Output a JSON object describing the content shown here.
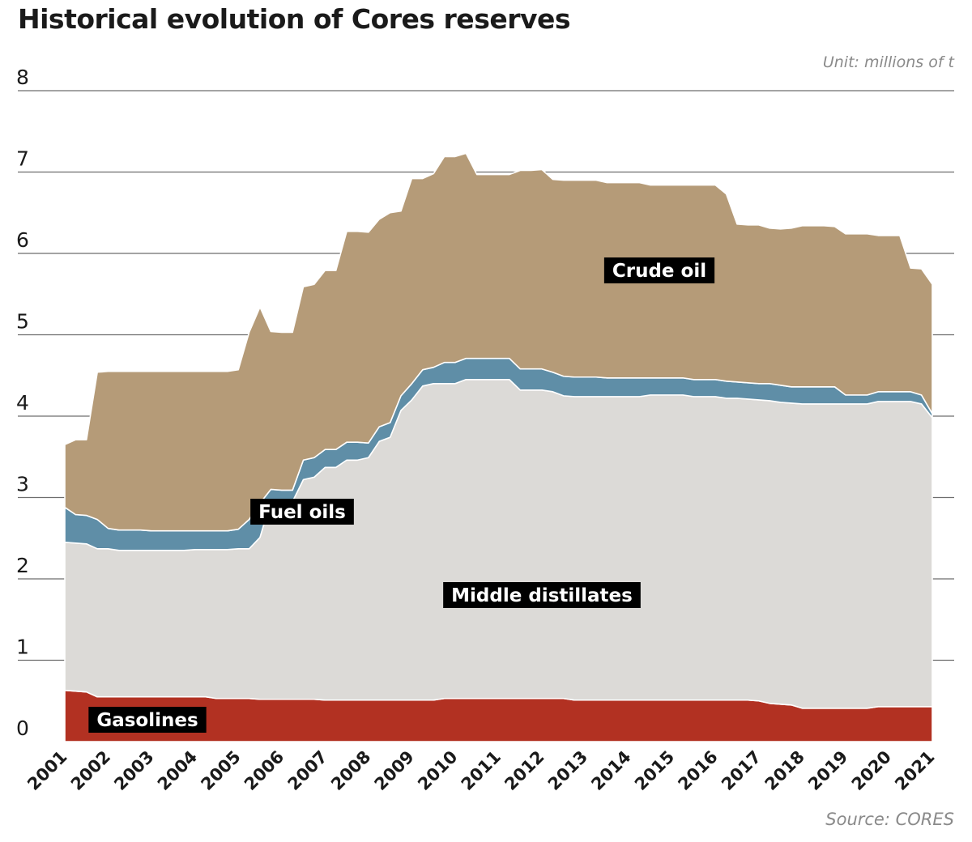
{
  "title": "Historical evolution of Cores reserves",
  "unit_note": "Unit: millions of t",
  "source_note": "Source: CORES",
  "chart_data": {
    "type": "area",
    "stacked": true,
    "title": "Historical evolution of Cores reserves",
    "unit": "millions of t",
    "ylim": [
      0,
      8
    ],
    "y_ticks": [
      0,
      1,
      2,
      3,
      4,
      5,
      6,
      7,
      8
    ],
    "x_ticks": [
      "2001",
      "2002",
      "2003",
      "2004",
      "2005",
      "2006",
      "2007",
      "2008",
      "2009",
      "2010",
      "2011",
      "2012",
      "2013",
      "2014",
      "2015",
      "2016",
      "2017",
      "2018",
      "2019",
      "2020",
      "2021"
    ],
    "xlim": [
      2001.0,
      2021.0
    ],
    "grid": "horizontal",
    "x": [
      2001.0,
      2001.25,
      2001.5,
      2001.75,
      2002.0,
      2002.25,
      2002.5,
      2002.75,
      2003.0,
      2003.25,
      2003.5,
      2003.75,
      2004.0,
      2004.25,
      2004.5,
      2004.75,
      2005.0,
      2005.25,
      2005.5,
      2005.75,
      2006.0,
      2006.25,
      2006.5,
      2006.75,
      2007.0,
      2007.25,
      2007.5,
      2007.75,
      2008.0,
      2008.25,
      2008.5,
      2008.75,
      2009.0,
      2009.25,
      2009.5,
      2009.75,
      2010.0,
      2010.25,
      2010.5,
      2010.75,
      2011.0,
      2011.25,
      2011.5,
      2011.75,
      2012.0,
      2012.25,
      2012.5,
      2012.75,
      2013.0,
      2013.25,
      2013.5,
      2013.75,
      2014.0,
      2014.25,
      2014.5,
      2014.75,
      2015.0,
      2015.25,
      2015.5,
      2015.75,
      2016.0,
      2016.25,
      2016.5,
      2016.75,
      2017.0,
      2017.25,
      2017.5,
      2017.75,
      2018.0,
      2018.25,
      2018.5,
      2018.75,
      2019.0,
      2019.25,
      2019.5,
      2019.75,
      2020.0,
      2020.25,
      2020.5,
      2020.75,
      2021.0
    ],
    "series": [
      {
        "name": "Gasolines",
        "color": "#b23122",
        "values": [
          0.63,
          0.62,
          0.61,
          0.55,
          0.55,
          0.55,
          0.55,
          0.55,
          0.55,
          0.55,
          0.55,
          0.55,
          0.55,
          0.55,
          0.53,
          0.53,
          0.53,
          0.53,
          0.52,
          0.52,
          0.52,
          0.52,
          0.52,
          0.52,
          0.51,
          0.51,
          0.51,
          0.51,
          0.51,
          0.51,
          0.51,
          0.51,
          0.51,
          0.51,
          0.51,
          0.53,
          0.53,
          0.53,
          0.53,
          0.53,
          0.53,
          0.53,
          0.53,
          0.53,
          0.53,
          0.53,
          0.53,
          0.51,
          0.51,
          0.51,
          0.51,
          0.51,
          0.51,
          0.51,
          0.51,
          0.51,
          0.51,
          0.51,
          0.51,
          0.51,
          0.51,
          0.51,
          0.51,
          0.51,
          0.5,
          0.47,
          0.46,
          0.45,
          0.41,
          0.41,
          0.41,
          0.41,
          0.41,
          0.41,
          0.41,
          0.43,
          0.43,
          0.43,
          0.43,
          0.43,
          0.43
        ]
      },
      {
        "name": "Middle distillates",
        "color": "#dcdad7",
        "values": [
          1.82,
          1.82,
          1.82,
          1.82,
          1.82,
          1.8,
          1.8,
          1.8,
          1.8,
          1.8,
          1.8,
          1.8,
          1.81,
          1.81,
          1.83,
          1.83,
          1.84,
          1.84,
          1.99,
          2.44,
          2.43,
          2.43,
          2.7,
          2.73,
          2.86,
          2.86,
          2.95,
          2.95,
          2.98,
          3.18,
          3.23,
          3.56,
          3.69,
          3.86,
          3.89,
          3.87,
          3.87,
          3.92,
          3.92,
          3.92,
          3.92,
          3.92,
          3.79,
          3.79,
          3.79,
          3.77,
          3.72,
          3.73,
          3.73,
          3.73,
          3.73,
          3.73,
          3.73,
          3.73,
          3.75,
          3.75,
          3.75,
          3.75,
          3.73,
          3.73,
          3.73,
          3.71,
          3.71,
          3.7,
          3.7,
          3.72,
          3.71,
          3.71,
          3.74,
          3.74,
          3.74,
          3.74,
          3.74,
          3.74,
          3.74,
          3.75,
          3.75,
          3.75,
          3.75,
          3.72,
          3.55
        ]
      },
      {
        "name": "Fuel oils",
        "color": "#5f8ea7",
        "values": [
          0.43,
          0.35,
          0.35,
          0.36,
          0.25,
          0.25,
          0.25,
          0.25,
          0.24,
          0.24,
          0.24,
          0.24,
          0.23,
          0.23,
          0.23,
          0.23,
          0.24,
          0.36,
          0.42,
          0.14,
          0.14,
          0.14,
          0.24,
          0.24,
          0.22,
          0.22,
          0.22,
          0.22,
          0.18,
          0.18,
          0.18,
          0.18,
          0.2,
          0.2,
          0.2,
          0.26,
          0.26,
          0.26,
          0.26,
          0.26,
          0.26,
          0.26,
          0.26,
          0.26,
          0.26,
          0.24,
          0.24,
          0.24,
          0.24,
          0.24,
          0.23,
          0.23,
          0.23,
          0.23,
          0.21,
          0.21,
          0.21,
          0.21,
          0.21,
          0.21,
          0.21,
          0.21,
          0.2,
          0.2,
          0.2,
          0.21,
          0.21,
          0.2,
          0.21,
          0.21,
          0.21,
          0.21,
          0.11,
          0.11,
          0.11,
          0.12,
          0.12,
          0.12,
          0.12,
          0.11,
          0.05
        ]
      },
      {
        "name": "Crude oil",
        "color": "#b59b78",
        "values": [
          0.77,
          0.92,
          0.93,
          1.81,
          1.93,
          1.95,
          1.95,
          1.95,
          1.96,
          1.96,
          1.96,
          1.96,
          1.96,
          1.96,
          1.96,
          1.96,
          1.96,
          2.3,
          2.41,
          1.94,
          1.94,
          1.94,
          2.13,
          2.13,
          2.2,
          2.2,
          2.59,
          2.59,
          2.59,
          2.55,
          2.58,
          2.27,
          2.52,
          2.35,
          2.38,
          2.53,
          2.53,
          2.52,
          2.26,
          2.26,
          2.26,
          2.26,
          2.44,
          2.44,
          2.45,
          2.37,
          2.41,
          2.42,
          2.42,
          2.42,
          2.4,
          2.4,
          2.4,
          2.4,
          2.37,
          2.37,
          2.37,
          2.37,
          2.39,
          2.39,
          2.39,
          2.3,
          1.94,
          1.94,
          1.95,
          1.91,
          1.92,
          1.95,
          1.98,
          1.98,
          1.98,
          1.97,
          1.98,
          1.98,
          1.98,
          1.92,
          1.92,
          1.92,
          1.52,
          1.55,
          1.59
        ]
      }
    ]
  }
}
